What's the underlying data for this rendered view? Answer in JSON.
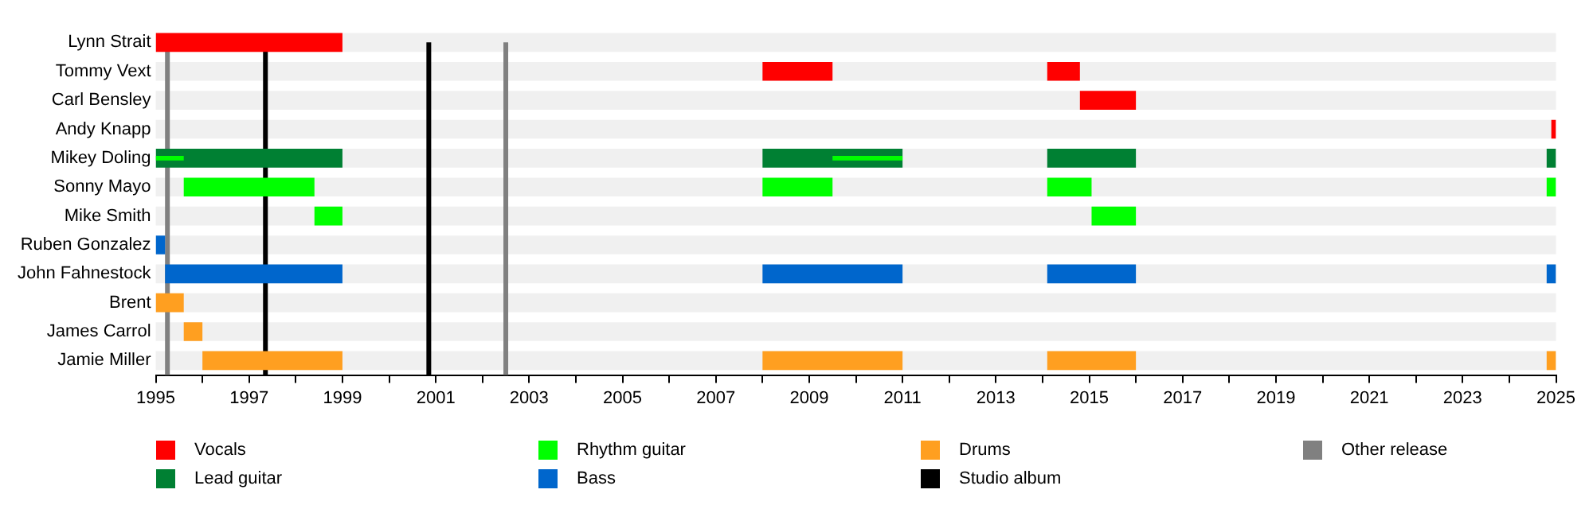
{
  "chart_data": {
    "type": "bar",
    "orientation": "horizontal",
    "stacked": false,
    "grid": false,
    "legend": "bottom",
    "categories": [
      "Lynn Strait",
      "Tommy Vext",
      "Carl Bensley",
      "Andy Knapp",
      "Mikey Doling",
      "Sonny Mayo",
      "Mike Smith",
      "Ruben Gonzalez",
      "John Fahnestock",
      "Brent",
      "James Carrol",
      "Jamie Miller"
    ],
    "series": [
      {
        "name": "Vocals",
        "color": "#ff0000",
        "base": [
          1995,
          2008,
          2014.8,
          2024.9,
          null,
          null,
          null,
          null,
          null,
          null,
          null,
          null
        ],
        "values": [
          4,
          1.5,
          1.2,
          0.1,
          null,
          null,
          null,
          null,
          null,
          null,
          null,
          null
        ]
      },
      {
        "color": "#ff0000",
        "base": [
          null,
          2014.1,
          null,
          null,
          null,
          null,
          null,
          null,
          null,
          null,
          null,
          null
        ],
        "values": [
          null,
          0.7,
          null,
          null,
          null,
          null,
          null,
          null,
          null,
          null,
          null,
          null
        ]
      },
      {
        "name": "Lead guitar",
        "color": "#008033",
        "base": [
          null,
          null,
          null,
          null,
          1995,
          null,
          null,
          null,
          null,
          null,
          null,
          null
        ],
        "values": [
          null,
          null,
          null,
          null,
          4,
          null,
          null,
          null,
          null,
          null,
          null,
          null
        ]
      },
      {
        "color": "#008033",
        "base": [
          null,
          null,
          null,
          null,
          2008,
          null,
          null,
          null,
          null,
          null,
          null,
          null
        ],
        "values": [
          null,
          null,
          null,
          null,
          3,
          null,
          null,
          null,
          null,
          null,
          null,
          null
        ]
      },
      {
        "color": "#008033",
        "base": [
          null,
          null,
          null,
          null,
          2014.1,
          null,
          null,
          null,
          null,
          null,
          null,
          null
        ],
        "values": [
          null,
          null,
          null,
          null,
          1.9,
          null,
          null,
          null,
          null,
          null,
          null,
          null
        ]
      },
      {
        "color": "#008033",
        "base": [
          null,
          null,
          null,
          null,
          2024.8,
          null,
          null,
          null,
          null,
          null,
          null,
          null
        ],
        "values": [
          null,
          null,
          null,
          null,
          0.2,
          null,
          null,
          null,
          null,
          null,
          null,
          null
        ]
      },
      {
        "name": "Rhythm guitar",
        "color": "#00ff00",
        "base": [
          null,
          null,
          null,
          null,
          null,
          1995.6,
          1998.4,
          null,
          null,
          null,
          null,
          null
        ],
        "values": [
          null,
          null,
          null,
          null,
          null,
          2.8,
          0.6,
          null,
          null,
          null,
          null,
          null
        ]
      },
      {
        "color": "#00ff00",
        "base": [
          null,
          null,
          null,
          null,
          null,
          2008,
          2015.05,
          null,
          null,
          null,
          null,
          null
        ],
        "values": [
          null,
          null,
          null,
          null,
          null,
          1.5,
          0.95,
          null,
          null,
          null,
          null,
          null
        ]
      },
      {
        "color": "#00ff00",
        "base": [
          null,
          null,
          null,
          null,
          null,
          2014.1,
          null,
          null,
          null,
          null,
          null,
          null
        ],
        "values": [
          null,
          null,
          null,
          null,
          null,
          0.95,
          null,
          null,
          null,
          null,
          null,
          null
        ]
      },
      {
        "color": "#00ff00",
        "base": [
          null,
          null,
          null,
          null,
          null,
          2024.8,
          null,
          null,
          null,
          null,
          null,
          null
        ],
        "values": [
          null,
          null,
          null,
          null,
          null,
          0.2,
          null,
          null,
          null,
          null,
          null,
          null
        ]
      },
      {
        "color": "#00ff00",
        "base": [
          null,
          null,
          null,
          null,
          1995,
          null,
          null,
          null,
          null,
          null,
          null,
          null
        ],
        "values": [
          null,
          null,
          null,
          null,
          0.6,
          null,
          null,
          null,
          null,
          null,
          null,
          null
        ]
      },
      {
        "color": "#00ff00",
        "base": [
          null,
          null,
          null,
          null,
          2009.5,
          null,
          null,
          null,
          null,
          null,
          null,
          null
        ],
        "values": [
          null,
          null,
          null,
          null,
          1.5,
          null,
          null,
          null,
          null,
          null,
          null,
          null
        ]
      },
      {
        "name": "Bass",
        "color": "#0066cc",
        "base": [
          null,
          null,
          null,
          null,
          null,
          null,
          null,
          1995,
          1995.2,
          null,
          null,
          null
        ],
        "values": [
          null,
          null,
          null,
          null,
          null,
          null,
          null,
          0.2,
          3.8,
          null,
          null,
          null
        ]
      },
      {
        "color": "#0066cc",
        "base": [
          null,
          null,
          null,
          null,
          null,
          null,
          null,
          null,
          2008,
          null,
          null,
          null
        ],
        "values": [
          null,
          null,
          null,
          null,
          null,
          null,
          null,
          null,
          3,
          null,
          null,
          null
        ]
      },
      {
        "color": "#0066cc",
        "base": [
          null,
          null,
          null,
          null,
          null,
          null,
          null,
          null,
          2014.1,
          null,
          null,
          null
        ],
        "values": [
          null,
          null,
          null,
          null,
          null,
          null,
          null,
          null,
          1.9,
          null,
          null,
          null
        ]
      },
      {
        "color": "#0066cc",
        "base": [
          null,
          null,
          null,
          null,
          null,
          null,
          null,
          null,
          2024.8,
          null,
          null,
          null
        ],
        "values": [
          null,
          null,
          null,
          null,
          null,
          null,
          null,
          null,
          0.2,
          null,
          null,
          null
        ]
      },
      {
        "name": "Drums",
        "color": "#ff9f20",
        "base": [
          null,
          null,
          null,
          null,
          null,
          null,
          null,
          null,
          null,
          1995,
          1995.6,
          1996
        ],
        "values": [
          null,
          null,
          null,
          null,
          null,
          null,
          null,
          null,
          null,
          0.6,
          0.4,
          3
        ]
      },
      {
        "color": "#ff9f20",
        "base": [
          null,
          null,
          null,
          null,
          null,
          null,
          null,
          null,
          null,
          null,
          null,
          2008
        ],
        "values": [
          null,
          null,
          null,
          null,
          null,
          null,
          null,
          null,
          null,
          null,
          null,
          3
        ]
      },
      {
        "color": "#ff9f20",
        "base": [
          null,
          null,
          null,
          null,
          null,
          null,
          null,
          null,
          null,
          null,
          null,
          2014.1
        ],
        "values": [
          null,
          null,
          null,
          null,
          null,
          null,
          null,
          null,
          null,
          null,
          null,
          1.9
        ]
      },
      {
        "color": "#ff9f20",
        "base": [
          null,
          null,
          null,
          null,
          null,
          null,
          null,
          null,
          null,
          null,
          null,
          2024.8
        ],
        "values": [
          null,
          null,
          null,
          null,
          null,
          null,
          null,
          null,
          null,
          null,
          null,
          0.2
        ]
      }
    ],
    "ref_lines": [
      {
        "axis": "x",
        "value": 1997.35,
        "label": "Studio album",
        "color": "#000000"
      },
      {
        "axis": "x",
        "value": 2000.85,
        "color": "#000000"
      },
      {
        "axis": "x",
        "value": 1995.25,
        "label": "Other release",
        "color": "#808080"
      },
      {
        "axis": "x",
        "value": 2002.5,
        "color": "#808080"
      }
    ],
    "xlim": [
      1995,
      2025
    ],
    "xticks": [
      1995,
      {
        "value": 1996,
        "label": null
      },
      1997,
      {
        "value": 1998,
        "label": null
      },
      1999,
      {
        "value": 2000,
        "label": null
      },
      2001,
      {
        "value": 2002,
        "label": null
      },
      2003,
      {
        "value": 2004,
        "label": null
      },
      2005,
      {
        "value": 2006,
        "label": null
      },
      2007,
      {
        "value": 2008,
        "label": null
      },
      2009,
      {
        "value": 2010,
        "label": null
      },
      2011,
      {
        "value": 2012,
        "label": null
      },
      2013,
      {
        "value": 2014,
        "label": null
      },
      2015,
      {
        "value": 2016,
        "label": null
      },
      2017,
      {
        "value": 2018,
        "label": null
      },
      2019,
      {
        "value": 2020,
        "label": null
      },
      2021,
      {
        "value": 2022,
        "label": null
      },
      2023,
      {
        "value": 2024,
        "label": null
      },
      2025
    ]
  }
}
